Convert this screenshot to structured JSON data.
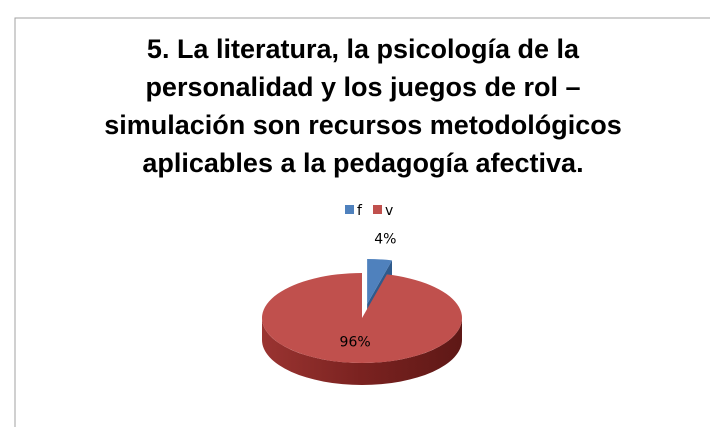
{
  "chart_data": {
    "type": "pie",
    "title": "5. La literatura, la psicología de la personalidad y los juegos de rol – simulación son recursos metodológicos aplicables a la pedagogía afectiva.",
    "categories": [
      "f",
      "v"
    ],
    "values": [
      4,
      96
    ],
    "value_labels": [
      "4%",
      "96%"
    ],
    "colors": [
      "#4f81bd",
      "#c0504d"
    ],
    "legend": "top"
  }
}
